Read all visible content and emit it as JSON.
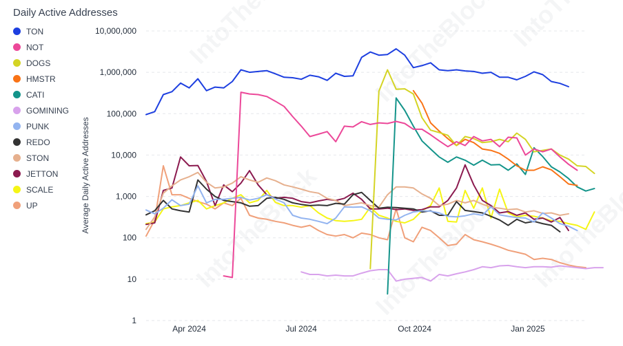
{
  "chart_data": {
    "type": "line",
    "title": "Daily Active Addresses",
    "ylabel": "Average Daily Active Addresses",
    "xlabel": "",
    "y_scale": "log",
    "ylim": [
      1,
      10000000
    ],
    "y_ticks": [
      1,
      10,
      100,
      1000,
      10000,
      100000,
      1000000,
      10000000
    ],
    "y_tick_labels": [
      "1",
      "10",
      "100",
      "1,000",
      "10,000",
      "100,000",
      "1,000,000",
      "10,000,000"
    ],
    "x_range": [
      "2024-02-26",
      "2025-02-17"
    ],
    "x_ticks": [
      "2024-04-01",
      "2024-07-01",
      "2024-10-01",
      "2025-01-01"
    ],
    "x_tick_labels": [
      "Apr 2024",
      "Jul 2024",
      "Oct 2024",
      "Jan 2025"
    ],
    "grid": true,
    "legend_position": "left",
    "watermark": "IntoTheBlock",
    "series": [
      {
        "name": "TON",
        "color": "#1d3fe0",
        "start": "2024-02-26",
        "values": [
          95000,
          112000,
          290000,
          340000,
          550000,
          420000,
          700000,
          360000,
          440000,
          420000,
          600000,
          1150000,
          1000000,
          1050000,
          1100000,
          920000,
          760000,
          740000,
          680000,
          850000,
          780000,
          640000,
          950000,
          800000,
          820000,
          2300000,
          3100000,
          2600000,
          2700000,
          3700000,
          2600000,
          1300000,
          1450000,
          1700000,
          1150000,
          1100000,
          1150000,
          1080000,
          1050000,
          950000,
          1000000,
          760000,
          760000,
          660000,
          800000,
          1030000,
          880000,
          600000,
          540000,
          450000
        ]
      },
      {
        "name": "NOT",
        "color": "#ec4899",
        "start": "2024-04-29",
        "values": [
          12,
          11,
          330000,
          300000,
          290000,
          260000,
          200000,
          150000,
          85000,
          50000,
          28000,
          32000,
          37000,
          21000,
          50000,
          48000,
          64000,
          55000,
          60000,
          58000,
          65000,
          58000,
          42000,
          42000,
          31000,
          22000,
          16000,
          21000,
          17000,
          28000,
          22000,
          24000,
          16000,
          27000,
          26000,
          10000,
          14000,
          12000,
          14000,
          9000,
          6000,
          4300
        ]
      },
      {
        "name": "DOGS",
        "color": "#d4d424",
        "start": "2024-08-26",
        "values": [
          18,
          350000,
          1150000,
          390000,
          400000,
          300000,
          80000,
          40000,
          35000,
          30000,
          17000,
          28000,
          25000,
          20000,
          21000,
          24000,
          21000,
          34000,
          24000,
          12000,
          13000,
          14000,
          10000,
          8000,
          5500,
          5300,
          3600
        ]
      },
      {
        "name": "HMSTR",
        "color": "#f97316",
        "start": "2024-09-30",
        "values": [
          360000,
          180000,
          60000,
          38000,
          25000,
          17000,
          24000,
          20000,
          14000,
          13000,
          11000,
          8000,
          5500,
          4300,
          4300,
          5200,
          4400,
          3000,
          2000,
          1850
        ]
      },
      {
        "name": "CATI",
        "color": "#14948a",
        "start": "2024-09-09",
        "values": [
          4.4,
          240000,
          120000,
          50000,
          22000,
          14000,
          9000,
          6700,
          9000,
          7500,
          5700,
          7500,
          5800,
          5900,
          4300,
          6100,
          3400,
          15000,
          9200,
          5200,
          3900,
          2700,
          1700,
          1350,
          1550
        ]
      },
      {
        "name": "GOMINING",
        "color": "#d8a2ec",
        "start": "2024-07-01",
        "values": [
          15,
          13,
          13,
          12,
          12.5,
          12,
          12,
          14,
          16,
          17,
          17,
          9,
          10,
          10.5,
          11,
          9,
          13,
          12,
          13.5,
          15,
          17,
          20,
          19,
          21,
          21.5,
          20,
          19,
          20,
          20,
          19.5,
          21,
          20,
          19,
          18,
          19,
          19
        ]
      },
      {
        "name": "PUNK",
        "color": "#93b4f0",
        "start": "2024-02-26",
        "values": [
          470,
          380,
          520,
          830,
          600,
          650,
          1800,
          700,
          850,
          850,
          900,
          950,
          820,
          900,
          1100,
          870,
          700,
          350,
          300,
          280,
          250,
          220,
          300,
          560,
          550,
          560,
          450,
          300,
          280,
          270,
          350,
          420,
          450,
          440,
          400,
          330,
          320,
          340,
          380,
          350,
          560,
          360,
          330,
          310,
          300,
          240,
          400,
          300,
          220,
          190,
          150
        ]
      },
      {
        "name": "REDO",
        "color": "#333333",
        "start": "2024-02-26",
        "values": [
          360,
          450,
          800,
          500,
          450,
          420,
          2500,
          1500,
          1000,
          800,
          750,
          700,
          580,
          600,
          900,
          950,
          850,
          700,
          640,
          600,
          620,
          600,
          680,
          650,
          1100,
          1250,
          800,
          520,
          550,
          540,
          520,
          500,
          420,
          450,
          350,
          350,
          750,
          460,
          430,
          400,
          330,
          270,
          200,
          280,
          230,
          250,
          220,
          200,
          140
        ]
      },
      {
        "name": "STON",
        "color": "#e6b08e",
        "start": "2024-02-26",
        "values": [
          160,
          320,
          1200,
          1800,
          2500,
          3000,
          3800,
          2200,
          1600,
          1700,
          2100,
          3000,
          2500,
          2200,
          2800,
          2400,
          1900,
          1700,
          1500,
          1300,
          1200,
          900,
          800,
          600,
          650,
          700,
          600,
          550,
          1100,
          1700,
          1700,
          1600,
          1150,
          900,
          600,
          650,
          800,
          700,
          800,
          650,
          550,
          520,
          480,
          500,
          420,
          450,
          390,
          400,
          350,
          380
        ]
      },
      {
        "name": "JETTON",
        "color": "#8b1a4f",
        "start": "2024-02-26",
        "values": [
          210,
          230,
          1400,
          1600,
          9000,
          5500,
          5600,
          2300,
          600,
          1900,
          1300,
          2100,
          4200,
          1900,
          1100,
          900,
          950,
          900,
          750,
          700,
          780,
          850,
          800,
          900,
          1200,
          850,
          500,
          500,
          520,
          480,
          500,
          460,
          480,
          560,
          560,
          800,
          1600,
          5800,
          1900,
          800,
          600,
          400,
          430,
          350,
          400,
          280,
          300,
          240,
          310,
          150
        ]
      },
      {
        "name": "SCALE",
        "color": "#f5f516",
        "start": "2024-02-26",
        "values": [
          220,
          240,
          500,
          560,
          600,
          700,
          800,
          500,
          600,
          700,
          900,
          1100,
          700,
          800,
          1400,
          720,
          600,
          600,
          550,
          600,
          400,
          300,
          260,
          250,
          260,
          280,
          550,
          350,
          300,
          250,
          230,
          280,
          450,
          600,
          1600,
          250,
          240,
          1400,
          520,
          1600,
          300,
          1500,
          400,
          320,
          350,
          330,
          300,
          260,
          250,
          220,
          200,
          160,
          420
        ]
      },
      {
        "name": "UP",
        "color": "#f0a07a",
        "start": "2024-02-26",
        "values": [
          110,
          270,
          5500,
          1100,
          1100,
          900,
          750,
          650,
          500,
          700,
          600,
          900,
          350,
          300,
          280,
          250,
          230,
          200,
          180,
          200,
          150,
          120,
          110,
          120,
          100,
          130,
          120,
          100,
          90,
          500,
          100,
          80,
          180,
          150,
          100,
          65,
          70,
          120,
          90,
          80,
          70,
          60,
          50,
          45,
          40,
          30,
          32,
          30,
          25,
          22,
          20,
          19
        ]
      }
    ]
  }
}
